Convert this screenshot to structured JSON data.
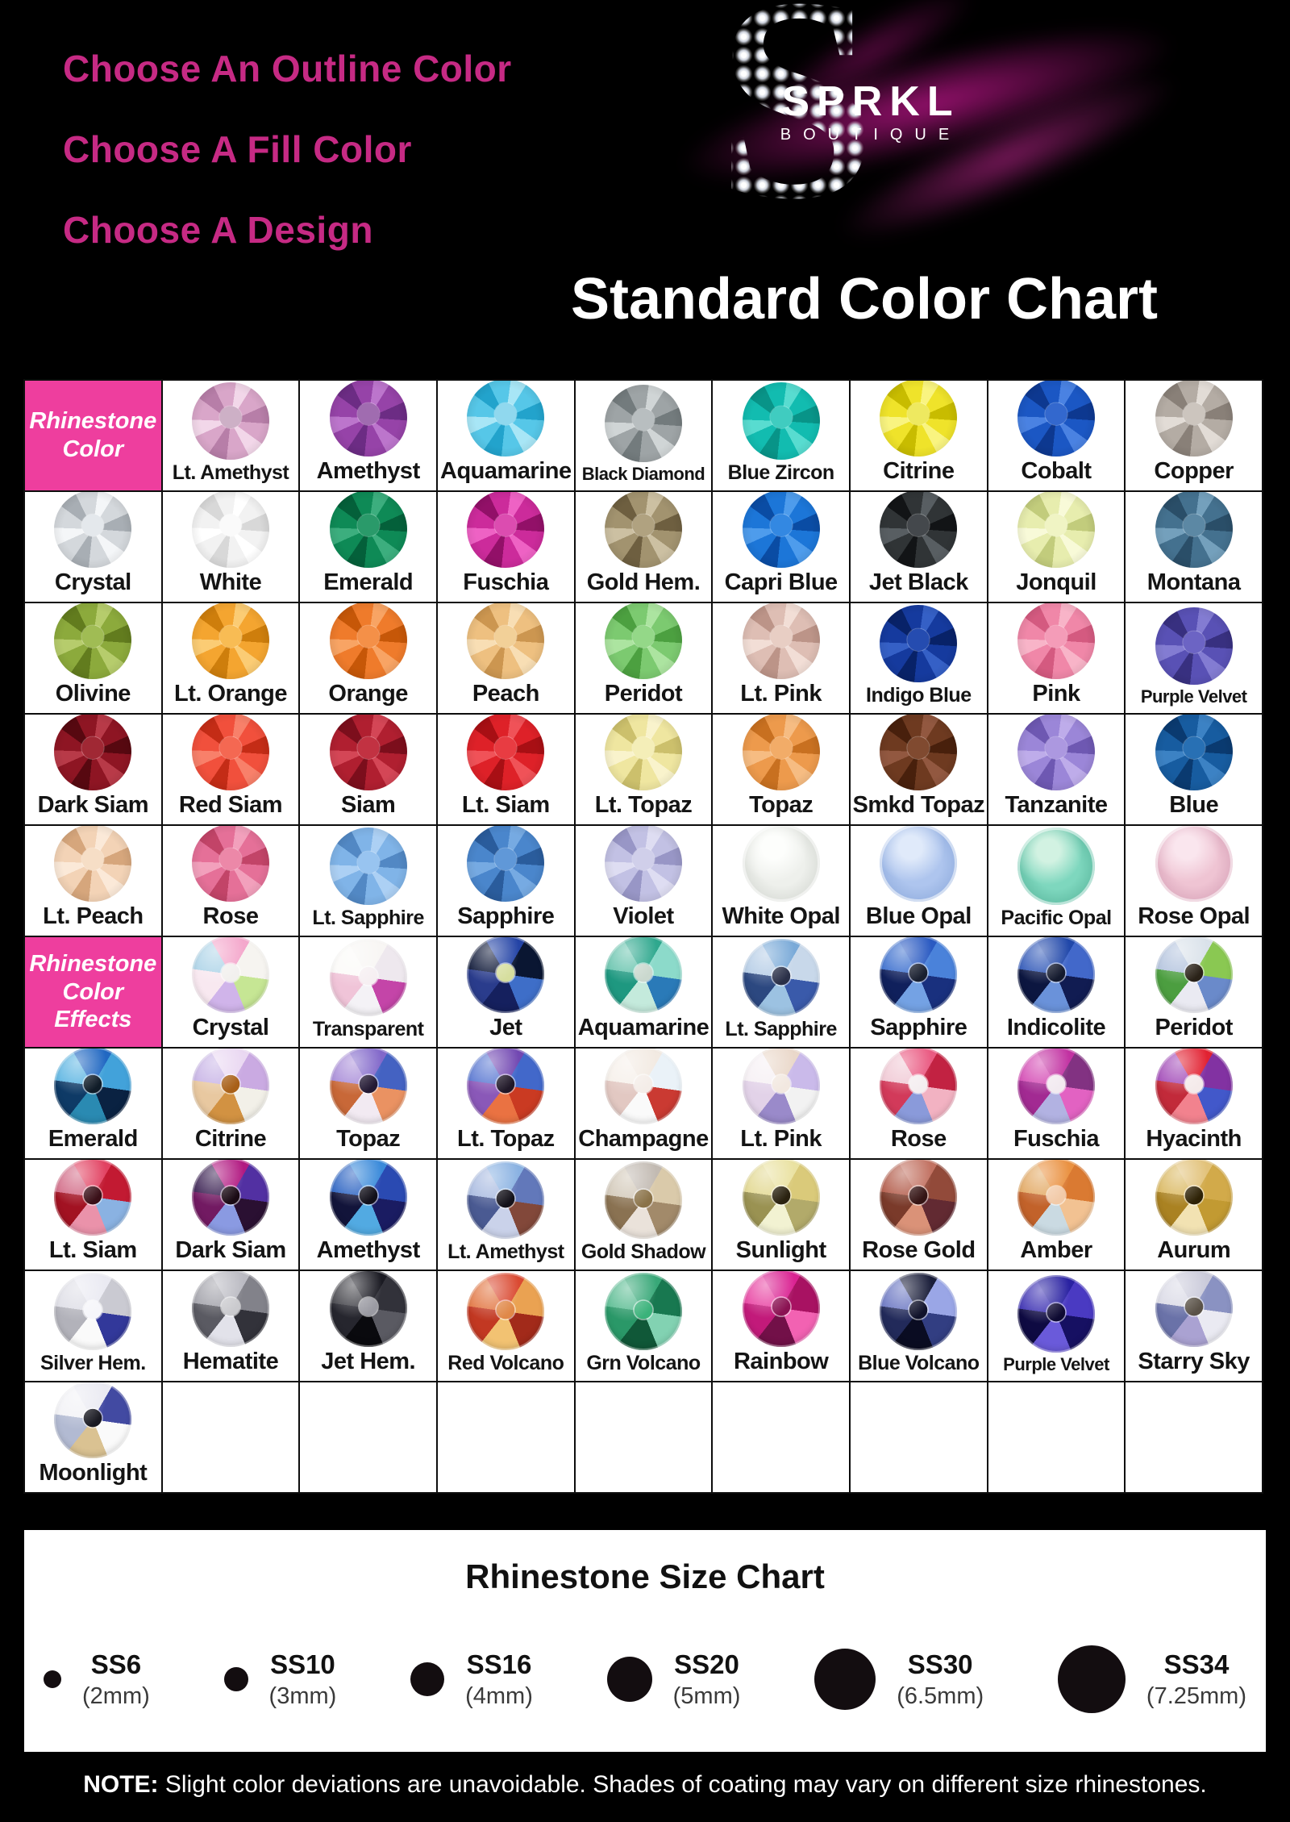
{
  "header": {
    "choose_lines": [
      "Choose An Outline Color",
      "Choose A Fill Color",
      "Choose A Design"
    ],
    "accent_pink": "#c62a84",
    "logo": {
      "letter": "S",
      "brand": "SPRKL",
      "sub": "BOUTIQUE",
      "glitter_color": "#b21486"
    },
    "title": "Standard Color Chart"
  },
  "table": {
    "header_pink": "#ee3e9e",
    "rows": [
      [
        {
          "t": "h",
          "label": "Rhinestone Color"
        },
        {
          "t": "f",
          "label": "Lt. Amethyst",
          "b": "#d9a6c9",
          "l": "#f2d7e9",
          "d": "#b77ea8",
          "c": "#cdb0c6"
        },
        {
          "t": "f",
          "label": "Amethyst",
          "b": "#9643a8",
          "l": "#bc75cc",
          "d": "#6c2c84",
          "c": "#a06cb0"
        },
        {
          "t": "f",
          "label": "Aquamarine",
          "b": "#56c7e8",
          "l": "#a8e6f6",
          "d": "#22a3cc",
          "c": "#90d8ee"
        },
        {
          "t": "f",
          "label": "Black Diamond",
          "b": "#9ea4a6",
          "l": "#d0d5d6",
          "d": "#737b7d",
          "c": "#b8bec0"
        },
        {
          "t": "f",
          "label": "Blue Zircon",
          "b": "#12bcb0",
          "l": "#58dcd0",
          "d": "#089488",
          "c": "#40ccc0"
        },
        {
          "t": "f",
          "label": "Citrine",
          "b": "#efe32a",
          "l": "#f9f480",
          "d": "#c8bc00",
          "c": "#eee960"
        },
        {
          "t": "f",
          "label": "Cobalt",
          "b": "#1b57c4",
          "l": "#4a82e2",
          "d": "#0d3890",
          "c": "#3368ce"
        },
        {
          "t": "f",
          "label": "Copper",
          "b": "#b4aca4",
          "l": "#e2dcd6",
          "d": "#898078",
          "c": "#ccc5be"
        }
      ],
      [
        {
          "t": "f",
          "label": "Crystal",
          "b": "#d4d8dc",
          "l": "#f4f6f8",
          "d": "#a8aeb4",
          "c": "#e4e8ec"
        },
        {
          "t": "f",
          "label": "White",
          "b": "#f2f2f2",
          "l": "#ffffff",
          "d": "#d8d8d8",
          "c": "#fafafa"
        },
        {
          "t": "f",
          "label": "Emerald",
          "b": "#0e8a56",
          "l": "#3cae7e",
          "d": "#04603a",
          "c": "#2a9a6a"
        },
        {
          "t": "f",
          "label": "Fuschia",
          "b": "#cc2b9b",
          "l": "#ee62c4",
          "d": "#921068",
          "c": "#dc4cb0"
        },
        {
          "t": "f",
          "label": "Gold Hem.",
          "b": "#a2936f",
          "l": "#ccc0a2",
          "d": "#6e5f40",
          "c": "#b0a280"
        },
        {
          "t": "f",
          "label": "Capri Blue",
          "b": "#1c76d8",
          "l": "#4e9cec",
          "d": "#0a4ca4",
          "c": "#3388e2"
        },
        {
          "t": "f",
          "label": "Jet Black",
          "b": "#303436",
          "l": "#585e62",
          "d": "#121416",
          "c": "#44484c"
        },
        {
          "t": "f",
          "label": "Jonquil",
          "b": "#e7edae",
          "l": "#f8fad8",
          "d": "#c2cc7c",
          "c": "#f0f4c4"
        },
        {
          "t": "f",
          "label": "Montana",
          "b": "#44718f",
          "l": "#74a0bc",
          "d": "#2a4e68",
          "c": "#5c88a4"
        }
      ],
      [
        {
          "t": "f",
          "label": "Olivine",
          "b": "#8caa3c",
          "l": "#b6cc6c",
          "d": "#627c1e",
          "c": "#a0bc54"
        },
        {
          "t": "f",
          "label": "Lt. Orange",
          "b": "#f4a530",
          "l": "#fbcc74",
          "d": "#ce7e0c",
          "c": "#f8bc54"
        },
        {
          "t": "f",
          "label": "Orange",
          "b": "#ef7b2b",
          "l": "#f8a464",
          "d": "#c65708",
          "c": "#f49048"
        },
        {
          "t": "f",
          "label": "Peach",
          "b": "#eec080",
          "l": "#f8deb4",
          "d": "#cc9650",
          "c": "#f2d098"
        },
        {
          "t": "f",
          "label": "Peridot",
          "b": "#7cca70",
          "l": "#ace4a0",
          "d": "#4ca040",
          "c": "#94d888"
        },
        {
          "t": "f",
          "label": "Lt. Pink",
          "b": "#debeb4",
          "l": "#f2ded6",
          "d": "#bc9488",
          "c": "#e8cec4"
        },
        {
          "t": "f",
          "label": "Indigo Blue",
          "b": "#153a9e",
          "l": "#3560c6",
          "d": "#082268",
          "c": "#254cb0"
        },
        {
          "t": "f",
          "label": "Pink",
          "b": "#f087a8",
          "l": "#f8b4c8",
          "d": "#d45a80",
          "c": "#f49cb8"
        },
        {
          "t": "f",
          "label": "Purple Velvet",
          "b": "#5951b5",
          "l": "#837cd2",
          "d": "#383080",
          "c": "#6c64c4"
        }
      ],
      [
        {
          "t": "f",
          "label": "Dark Siam",
          "b": "#8e1523",
          "l": "#b83a48",
          "d": "#570810",
          "c": "#a02834"
        },
        {
          "t": "f",
          "label": "Red Siam",
          "b": "#f1503c",
          "l": "#f8806a",
          "d": "#c42c16",
          "c": "#f46852"
        },
        {
          "t": "f",
          "label": "Siam",
          "b": "#b01f30",
          "l": "#d44656",
          "d": "#7c0e1c",
          "c": "#c23242"
        },
        {
          "t": "f",
          "label": "Lt. Siam",
          "b": "#de2128",
          "l": "#f05258",
          "d": "#a80f14",
          "c": "#e83c42"
        },
        {
          "t": "f",
          "label": "Lt. Topaz",
          "b": "#efe6a0",
          "l": "#f9f3cc",
          "d": "#ccc06c",
          "c": "#f4eeb8"
        },
        {
          "t": "f",
          "label": "Topaz",
          "b": "#ed9a4c",
          "l": "#f6bc82",
          "d": "#c87020",
          "c": "#f2ac68"
        },
        {
          "t": "f",
          "label": "Smkd Topaz",
          "b": "#6e3a20",
          "l": "#925840",
          "d": "#48200c",
          "c": "#804a30"
        },
        {
          "t": "f",
          "label": "Tanzanite",
          "b": "#9b86d8",
          "l": "#beacea",
          "d": "#6e58b2",
          "c": "#ac98e0"
        },
        {
          "t": "f",
          "label": "Blue",
          "b": "#175ca0",
          "l": "#3c82c4",
          "d": "#0a3a70",
          "c": "#2870b4"
        }
      ],
      [
        {
          "t": "f",
          "label": "Lt. Peach",
          "b": "#f3d3b6",
          "l": "#fbe9d8",
          "d": "#d6a67c",
          "c": "#f6dec6"
        },
        {
          "t": "f",
          "label": "Rose",
          "b": "#e57098",
          "l": "#f2a0bc",
          "d": "#c24468",
          "c": "#ec88a8"
        },
        {
          "t": "f",
          "label": "Lt. Sapphire",
          "b": "#80b4e8",
          "l": "#acd0f4",
          "d": "#5288c4",
          "c": "#98c4f0"
        },
        {
          "t": "f",
          "label": "Sapphire",
          "b": "#4a86cc",
          "l": "#76aae2",
          "d": "#2a5c9c",
          "c": "#6098d8"
        },
        {
          "t": "f",
          "label": "Violet",
          "b": "#c2c1e4",
          "l": "#deddf2",
          "d": "#9896c6",
          "c": "#d0cfea"
        },
        {
          "t": "o",
          "label": "White Opal",
          "b": "#eef0ec",
          "l": "#fdfefc",
          "d": "#ccd0ca"
        },
        {
          "t": "o",
          "label": "Blue Opal",
          "b": "#aec5ee",
          "l": "#e0eafa",
          "d": "#86a4d8"
        },
        {
          "t": "o",
          "label": "Pacific Opal",
          "b": "#7ed7be",
          "l": "#d2f2e2",
          "d": "#50ae94"
        },
        {
          "t": "o",
          "label": "Rose Opal",
          "b": "#efc4d3",
          "l": "#fae6ee",
          "d": "#d098b0"
        }
      ],
      [
        {
          "t": "h",
          "label": "Rhinestone Color Effects"
        },
        {
          "t": "e",
          "label": "Crystal",
          "s": [
            "#f4a8cc",
            "#f6f4f0",
            "#c6e694",
            "#d0b4ea",
            "#f8e8f0",
            "#aed4e8"
          ],
          "c": "#f2f0ee"
        },
        {
          "t": "e",
          "label": "Transparent",
          "s": [
            "#f8f6f4",
            "#eee8ee",
            "#c445a8",
            "#f4f2f6",
            "#f0c4d8",
            "#fbfaf8"
          ],
          "c": "#f6eff2"
        },
        {
          "t": "e",
          "label": "Jet",
          "s": [
            "#2444a6",
            "#0a1632",
            "#3e6ec8",
            "#15205e",
            "#2a3c8c",
            "#0e1838"
          ],
          "c": "#d6de9e"
        },
        {
          "t": "e",
          "label": "Aquamarine",
          "s": [
            "#2fa88e",
            "#8cdaca",
            "#2a7ab8",
            "#c4eadc",
            "#1e9880",
            "#68c4ae"
          ],
          "c": "#cad8ce"
        },
        {
          "t": "e",
          "label": "Lt. Sapphire",
          "s": [
            "#7aaad8",
            "#c8d8ea",
            "#3a5aaa",
            "#9cc2e2",
            "#2c4880",
            "#b4cce6"
          ],
          "c": "#2a3048"
        },
        {
          "t": "e",
          "label": "Sapphire",
          "s": [
            "#2a5ac2",
            "#4a82da",
            "#19307e",
            "#74a2e4",
            "#10205c",
            "#3a6ece"
          ],
          "c": "#1a2030"
        },
        {
          "t": "e",
          "label": "Indicolite",
          "s": [
            "#2148aa",
            "#4268ca",
            "#111c52",
            "#6a92da",
            "#0c1640",
            "#3058b8"
          ],
          "c": "#141a2e"
        },
        {
          "t": "e",
          "label": "Peridot",
          "s": [
            "#dae2ea",
            "#8ac852",
            "#6a8aca",
            "#eaeaf2",
            "#4c9e40",
            "#b4c4de"
          ],
          "c": "#2a2218"
        }
      ],
      [
        {
          "t": "e",
          "label": "Emerald",
          "s": [
            "#2168c2",
            "#42a2da",
            "#0a2242",
            "#2a8ab2",
            "#0e3a66",
            "#5ab4e2"
          ],
          "c": "#101c28"
        },
        {
          "t": "e",
          "label": "Citrine",
          "s": [
            "#ead8f2",
            "#caaae2",
            "#f2f0e8",
            "#d29242",
            "#e8c8a0",
            "#c8b4e6"
          ],
          "c": "#a86018"
        },
        {
          "t": "e",
          "label": "Topaz",
          "s": [
            "#8268ca",
            "#4462c2",
            "#ea9262",
            "#f2eaf2",
            "#c86838",
            "#a88cd8"
          ],
          "c": "#241a34"
        },
        {
          "t": "e",
          "label": "Lt. Topaz",
          "s": [
            "#7248b2",
            "#4268ca",
            "#ca3a22",
            "#ea7242",
            "#8a58b8",
            "#5a78d2"
          ],
          "c": "#201828"
        },
        {
          "t": "e",
          "label": "Champagne",
          "s": [
            "#f2eae2",
            "#eaf2f8",
            "#ca3a32",
            "#fafafa",
            "#e2c8c2",
            "#f6f0ea"
          ],
          "c": "#f4ede8"
        },
        {
          "t": "e",
          "label": "Lt. Pink",
          "s": [
            "#ead8ca",
            "#cabaea",
            "#f2f2f2",
            "#9a8aca",
            "#e2d2e8",
            "#f6f0f4"
          ],
          "c": "#f2e8e0"
        },
        {
          "t": "e",
          "label": "Rose",
          "s": [
            "#ea5a82",
            "#c22242",
            "#f2b2c2",
            "#8a9ada",
            "#d23a5a",
            "#f0c8d4"
          ],
          "c": "#f4eef0"
        },
        {
          "t": "e",
          "label": "Fuschia",
          "s": [
            "#c232a2",
            "#823282",
            "#e262c2",
            "#b2b2e2",
            "#a22a92",
            "#d44ab4"
          ],
          "c": "#f2eaf0"
        },
        {
          "t": "e",
          "label": "Hyacinth",
          "s": [
            "#e22232",
            "#8232a2",
            "#4258ca",
            "#f2828e",
            "#c22a3a",
            "#a24ab8"
          ],
          "c": "#f4eaea"
        }
      ],
      [
        {
          "t": "e",
          "label": "Lt. Siam",
          "s": [
            "#e24262",
            "#c21a32",
            "#8ab2e2",
            "#ea92aa",
            "#a21222",
            "#d26a86"
          ],
          "c": "#3a1018"
        },
        {
          "t": "e",
          "label": "Dark Siam",
          "s": [
            "#b21a82",
            "#5230a2",
            "#2a1032",
            "#8a9ae2",
            "#721a62",
            "#3a2052"
          ],
          "c": "#1a0a14"
        },
        {
          "t": "e",
          "label": "Amethyst",
          "s": [
            "#3a8ada",
            "#2a4ab2",
            "#1a1c62",
            "#52aae2",
            "#12143a",
            "#2a62c2"
          ],
          "c": "#12101a"
        },
        {
          "t": "e",
          "label": "Lt. Amethyst",
          "s": [
            "#8ab2e2",
            "#6278ba",
            "#82483a",
            "#cad2ea",
            "#4a5a92",
            "#a8bae0"
          ],
          "c": "#14121a"
        },
        {
          "t": "e",
          "label": "Gold Shadow",
          "s": [
            "#c2bab2",
            "#dacaaa",
            "#a28a6a",
            "#eae2da",
            "#8a7252",
            "#d2c8b8"
          ],
          "c": "#8a7248"
        },
        {
          "t": "e",
          "label": "Sunlight",
          "s": [
            "#eae2a2",
            "#daca7a",
            "#b2aa6a",
            "#f2f2d2",
            "#9a9252",
            "#e2d890"
          ],
          "c": "#2a2210"
        },
        {
          "t": "e",
          "label": "Rose Gold",
          "s": [
            "#c27262",
            "#924a3a",
            "#622a32",
            "#da9278",
            "#7a3a2a",
            "#b25a48"
          ],
          "c": "#341414"
        },
        {
          "t": "e",
          "label": "Amber",
          "s": [
            "#ea9242",
            "#da7a32",
            "#f2c292",
            "#cadae2",
            "#c2622a",
            "#e2a862"
          ],
          "c": "#f2caa8"
        },
        {
          "t": "e",
          "label": "Aurum",
          "s": [
            "#e2c27a",
            "#d2aa4a",
            "#c29a32",
            "#f2e2b2",
            "#aa8222",
            "#dab860"
          ],
          "c": "#2e2206"
        }
      ],
      [
        {
          "t": "e",
          "label": "Silver Hem.",
          "s": [
            "#eaeaf2",
            "#cacad2",
            "#32389a",
            "#fafafa",
            "#b2b2ba",
            "#dedee6"
          ],
          "c": "#f6f6fa"
        },
        {
          "t": "e",
          "label": "Hematite",
          "s": [
            "#babac2",
            "#82828a",
            "#32323a",
            "#e2e2ea",
            "#5a5a62",
            "#a2a2aa"
          ],
          "c": "#cacace"
        },
        {
          "t": "e",
          "label": "Jet Hem.",
          "s": [
            "#1a1a22",
            "#32323a",
            "#5a5a62",
            "#0a0a0e",
            "#26262e",
            "#424248"
          ],
          "c": "#9a9aa2"
        },
        {
          "t": "e",
          "label": "Red Volcano",
          "s": [
            "#da4a32",
            "#eaa252",
            "#a22a1a",
            "#f2c272",
            "#c23822",
            "#e27642"
          ],
          "c": "#e08848"
        },
        {
          "t": "e",
          "label": "Grn Volcano",
          "s": [
            "#38a878",
            "#187850",
            "#82d2b2",
            "#105838",
            "#2a9868",
            "#5abc92"
          ],
          "c": "#3ab27a"
        },
        {
          "t": "e",
          "label": "Rainbow",
          "s": [
            "#da2292",
            "#a81262",
            "#f262b2",
            "#721048",
            "#c21a7a",
            "#e842a2"
          ],
          "c": "#8a1252"
        },
        {
          "t": "e",
          "label": "Blue Volcano",
          "s": [
            "#1a1e3a",
            "#9aa6e6",
            "#323e82",
            "#0a0c22",
            "#222a5a",
            "#6a76c2"
          ],
          "c": "#10122a"
        },
        {
          "t": "e",
          "label": "Purple Velvet",
          "s": [
            "#2a22a2",
            "#4a3ac2",
            "#161062",
            "#6a5ada",
            "#0e0a42",
            "#3a2eb2"
          ],
          "c": "#0e0a32"
        },
        {
          "t": "e",
          "label": "Starry Sky",
          "s": [
            "#cacada",
            "#8a92c2",
            "#eaeaf2",
            "#aaa2d2",
            "#6a72a8",
            "#dadae6"
          ],
          "c": "#5a5248"
        }
      ],
      [
        {
          "t": "e",
          "label": "Moonlight",
          "s": [
            "#eaeaf2",
            "#424aa2",
            "#fafafa",
            "#dac292",
            "#b2bad2",
            "#f2f2f6"
          ],
          "c": "#1a1a22"
        },
        {
          "t": "x"
        },
        {
          "t": "x"
        },
        {
          "t": "x"
        },
        {
          "t": "x"
        },
        {
          "t": "x"
        },
        {
          "t": "x"
        },
        {
          "t": "x"
        },
        {
          "t": "x"
        }
      ]
    ]
  },
  "size_chart": {
    "title": "Rhinestone Size Chart",
    "sizes": [
      {
        "label": "SS6",
        "mm": "(2mm)",
        "d": 22
      },
      {
        "label": "SS10",
        "mm": "(3mm)",
        "d": 30
      },
      {
        "label": "SS16",
        "mm": "(4mm)",
        "d": 42
      },
      {
        "label": "SS20",
        "mm": "(5mm)",
        "d": 56
      },
      {
        "label": "SS30",
        "mm": "(6.5mm)",
        "d": 76
      },
      {
        "label": "SS34",
        "mm": "(7.25mm)",
        "d": 84
      }
    ]
  },
  "footer": {
    "note_prefix": "NOTE:",
    "note_rest": " Slight color deviations are unavoidable. Shades of coating may vary on different size rhinestones."
  }
}
